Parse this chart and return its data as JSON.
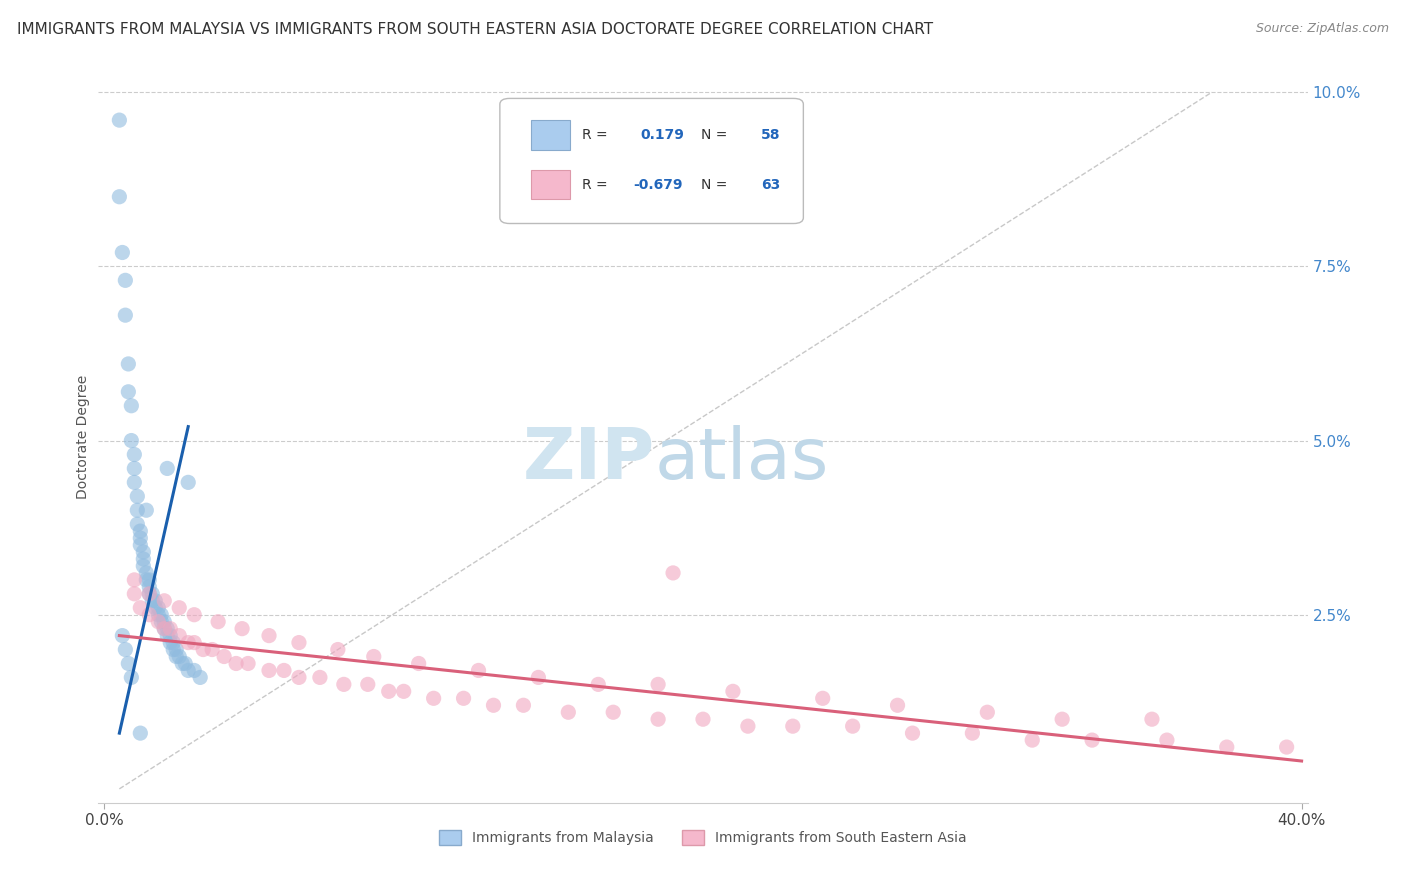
{
  "title": "IMMIGRANTS FROM MALAYSIA VS IMMIGRANTS FROM SOUTH EASTERN ASIA DOCTORATE DEGREE CORRELATION CHART",
  "source": "Source: ZipAtlas.com",
  "ylabel": "Doctorate Degree",
  "legend_label_blue": "Immigrants from Malaysia",
  "legend_label_pink": "Immigrants from South Eastern Asia",
  "legend_R_blue": "0.179",
  "legend_N_blue": "58",
  "legend_R_pink": "-0.679",
  "legend_N_pink": "63",
  "blue_scatter_x": [
    0.005,
    0.005,
    0.006,
    0.007,
    0.007,
    0.008,
    0.008,
    0.009,
    0.009,
    0.01,
    0.01,
    0.01,
    0.011,
    0.011,
    0.011,
    0.012,
    0.012,
    0.012,
    0.013,
    0.013,
    0.013,
    0.014,
    0.014,
    0.015,
    0.015,
    0.015,
    0.016,
    0.016,
    0.017,
    0.017,
    0.018,
    0.018,
    0.019,
    0.019,
    0.02,
    0.02,
    0.021,
    0.021,
    0.022,
    0.022,
    0.023,
    0.023,
    0.024,
    0.024,
    0.025,
    0.026,
    0.027,
    0.028,
    0.03,
    0.032,
    0.006,
    0.007,
    0.008,
    0.009,
    0.014,
    0.021,
    0.028,
    0.012
  ],
  "blue_scatter_y": [
    0.096,
    0.085,
    0.077,
    0.073,
    0.068,
    0.061,
    0.057,
    0.055,
    0.05,
    0.048,
    0.046,
    0.044,
    0.042,
    0.04,
    0.038,
    0.037,
    0.036,
    0.035,
    0.034,
    0.033,
    0.032,
    0.031,
    0.03,
    0.03,
    0.029,
    0.028,
    0.028,
    0.027,
    0.027,
    0.026,
    0.026,
    0.025,
    0.025,
    0.024,
    0.024,
    0.023,
    0.023,
    0.022,
    0.022,
    0.021,
    0.021,
    0.02,
    0.02,
    0.019,
    0.019,
    0.018,
    0.018,
    0.017,
    0.017,
    0.016,
    0.022,
    0.02,
    0.018,
    0.016,
    0.04,
    0.046,
    0.044,
    0.008
  ],
  "pink_scatter_x": [
    0.01,
    0.012,
    0.015,
    0.018,
    0.02,
    0.022,
    0.025,
    0.028,
    0.03,
    0.033,
    0.036,
    0.04,
    0.044,
    0.048,
    0.055,
    0.06,
    0.065,
    0.072,
    0.08,
    0.088,
    0.095,
    0.1,
    0.11,
    0.12,
    0.13,
    0.14,
    0.155,
    0.17,
    0.185,
    0.2,
    0.215,
    0.23,
    0.25,
    0.27,
    0.29,
    0.31,
    0.33,
    0.355,
    0.375,
    0.395,
    0.01,
    0.015,
    0.02,
    0.025,
    0.03,
    0.038,
    0.046,
    0.055,
    0.065,
    0.078,
    0.09,
    0.105,
    0.125,
    0.145,
    0.165,
    0.185,
    0.21,
    0.24,
    0.265,
    0.295,
    0.32,
    0.35,
    0.19
  ],
  "pink_scatter_y": [
    0.028,
    0.026,
    0.025,
    0.024,
    0.023,
    0.023,
    0.022,
    0.021,
    0.021,
    0.02,
    0.02,
    0.019,
    0.018,
    0.018,
    0.017,
    0.017,
    0.016,
    0.016,
    0.015,
    0.015,
    0.014,
    0.014,
    0.013,
    0.013,
    0.012,
    0.012,
    0.011,
    0.011,
    0.01,
    0.01,
    0.009,
    0.009,
    0.009,
    0.008,
    0.008,
    0.007,
    0.007,
    0.007,
    0.006,
    0.006,
    0.03,
    0.028,
    0.027,
    0.026,
    0.025,
    0.024,
    0.023,
    0.022,
    0.021,
    0.02,
    0.019,
    0.018,
    0.017,
    0.016,
    0.015,
    0.015,
    0.014,
    0.013,
    0.012,
    0.011,
    0.01,
    0.01,
    0.031
  ],
  "blue_line_x": [
    0.005,
    0.028
  ],
  "blue_line_y": [
    0.008,
    0.052
  ],
  "pink_line_x": [
    0.005,
    0.4
  ],
  "pink_line_y": [
    0.022,
    0.004
  ],
  "dashed_line_x": [
    0.005,
    0.37
  ],
  "dashed_line_y": [
    0.0,
    0.1
  ],
  "xlim": [
    -0.002,
    0.402
  ],
  "ylim": [
    -0.002,
    0.103
  ],
  "xticks": [
    0.0,
    0.4
  ],
  "xtick_labels": [
    "0.0%",
    "40.0%"
  ],
  "yticks": [
    0.025,
    0.05,
    0.075,
    0.1
  ],
  "ytick_labels": [
    "2.5%",
    "5.0%",
    "7.5%",
    "10.0%"
  ],
  "bg_color": "#ffffff",
  "blue_dot_color": "#90bbdf",
  "pink_dot_color": "#f0a8c0",
  "blue_line_color": "#1a5fad",
  "pink_line_color": "#d9607a",
  "dashed_line_color": "#c8c8c8",
  "grid_color": "#cccccc",
  "ytick_color": "#4488cc",
  "watermark_zip_color": "#d0e4f0",
  "watermark_atlas_color": "#c0d8e8",
  "title_fontsize": 11,
  "source_fontsize": 9,
  "axis_label_fontsize": 10,
  "tick_fontsize": 11,
  "legend_fontsize": 10
}
